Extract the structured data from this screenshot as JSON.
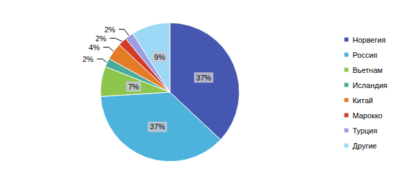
{
  "chart_data": {
    "type": "pie",
    "categories": [
      "Норвегия",
      "Россия",
      "Вьетнам",
      "Исландия",
      "Китай",
      "Марокко",
      "Турция",
      "Другие"
    ],
    "values": [
      37,
      37,
      7,
      2,
      4,
      2,
      2,
      9
    ],
    "value_labels": [
      "37%",
      "37%",
      "7%",
      "2%",
      "4%",
      "2%",
      "2%",
      "9%"
    ],
    "colors": [
      "#4557b0",
      "#4db3dc",
      "#8dc64c",
      "#4aab9b",
      "#e47b25",
      "#d13b2a",
      "#9c9ee0",
      "#9dd8f7"
    ],
    "data_labels": true,
    "legend": "right"
  }
}
